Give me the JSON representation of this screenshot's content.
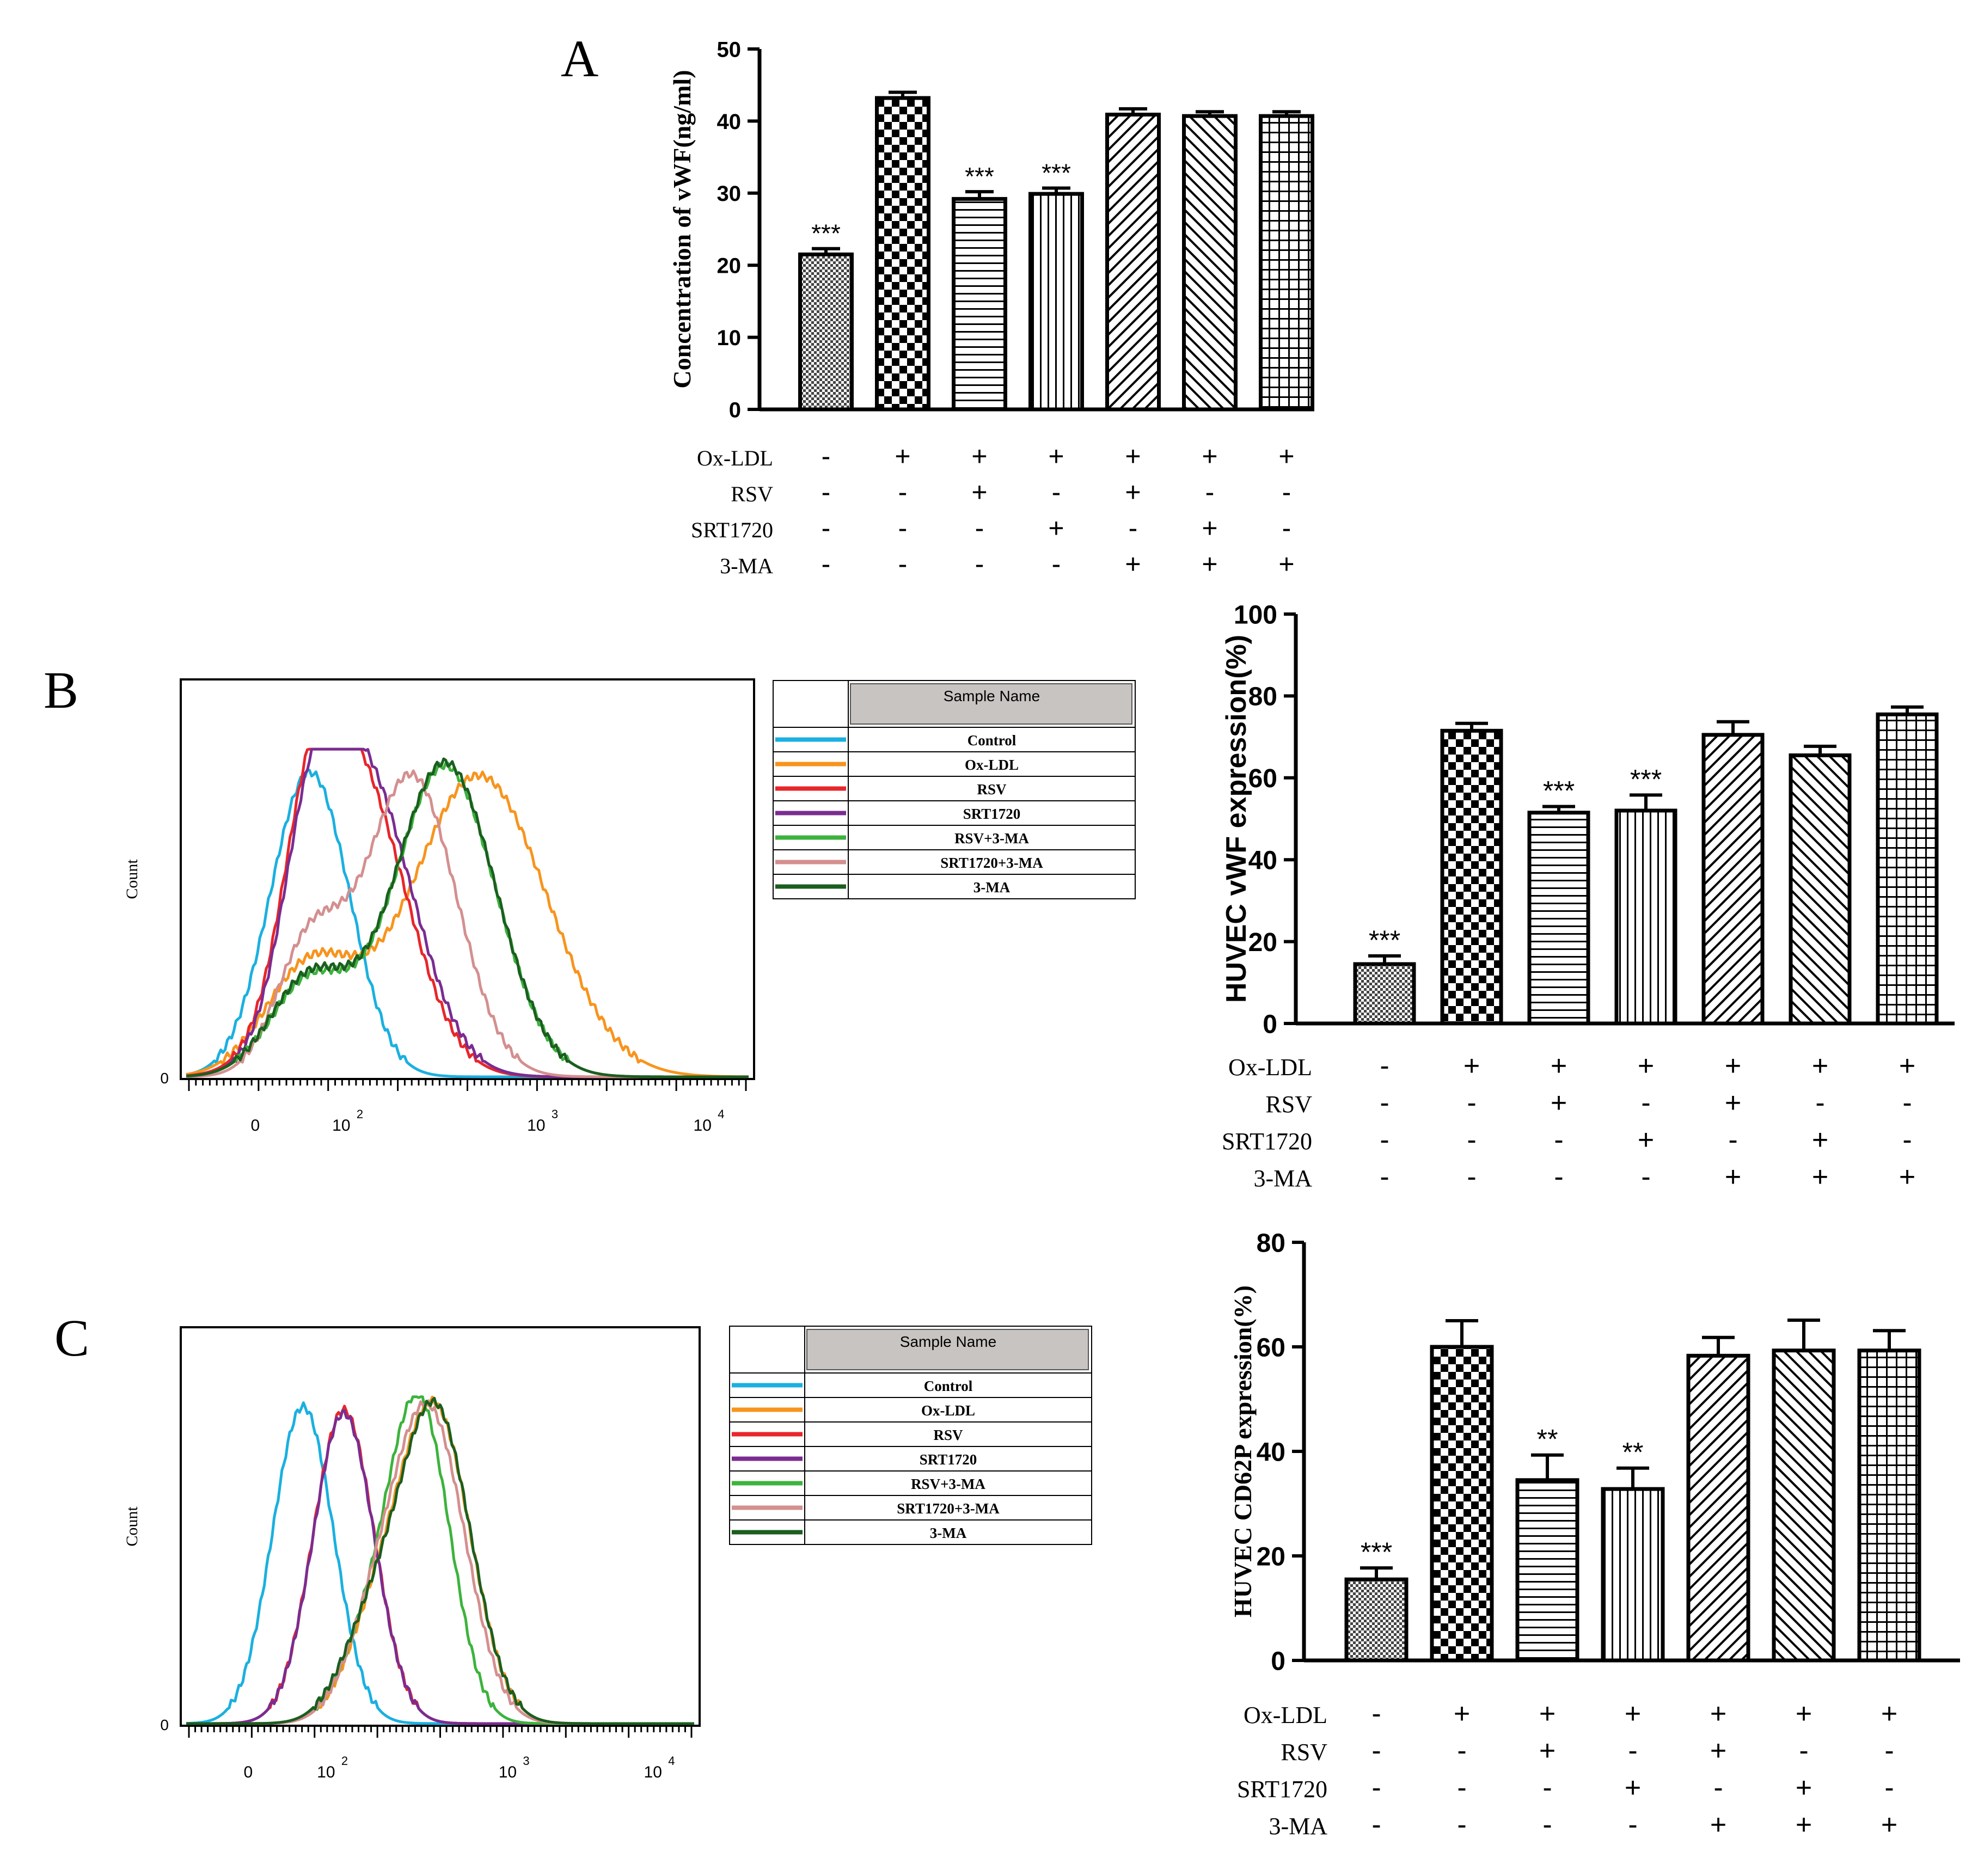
{
  "panels": {
    "A": "A",
    "B": "B",
    "C": "C"
  },
  "chart_data": [
    {
      "id": "A",
      "type": "bar",
      "ylabel": "Concentration of vWF(ng/ml)",
      "ylim": [
        0,
        50
      ],
      "yticks": [
        0,
        10,
        20,
        30,
        40,
        50
      ],
      "values": [
        21.5,
        43.2,
        29.2,
        29.9,
        40.9,
        40.7,
        40.7
      ],
      "errors": [
        0.8,
        0.8,
        1.0,
        0.8,
        0.8,
        0.6,
        0.6
      ],
      "significance": [
        "***",
        "",
        "***",
        "***",
        "",
        "",
        ""
      ],
      "treatments": [
        {
          "name": "Ox-LDL",
          "signs": [
            "-",
            "+",
            "+",
            "+",
            "+",
            "+",
            "+"
          ]
        },
        {
          "name": "RSV",
          "signs": [
            "-",
            "-",
            "+",
            "-",
            "+",
            "-",
            "-"
          ]
        },
        {
          "name": "SRT1720",
          "signs": [
            "-",
            "-",
            "-",
            "+",
            "-",
            "+",
            "-"
          ]
        },
        {
          "name": "3-MA",
          "signs": [
            "-",
            "-",
            "-",
            "-",
            "+",
            "+",
            "+"
          ]
        }
      ]
    },
    {
      "id": "B-bar",
      "type": "bar",
      "ylabel": "HUVEC vWF expression(%)",
      "ylim": [
        0,
        100
      ],
      "yticks": [
        0,
        20,
        40,
        60,
        80,
        100
      ],
      "values": [
        14.5,
        71.5,
        51.5,
        52.0,
        70.5,
        65.5,
        75.5
      ],
      "errors": [
        2.0,
        1.8,
        1.5,
        3.8,
        3.2,
        2.2,
        1.8
      ],
      "significance": [
        "***",
        "",
        "***",
        "***",
        "",
        "",
        ""
      ],
      "treatments": [
        {
          "name": "Ox-LDL",
          "signs": [
            "-",
            "+",
            "+",
            "+",
            "+",
            "+",
            "+"
          ]
        },
        {
          "name": "RSV",
          "signs": [
            "-",
            "-",
            "+",
            "-",
            "+",
            "-",
            "-"
          ]
        },
        {
          "name": "SRT1720",
          "signs": [
            "-",
            "-",
            "-",
            "+",
            "-",
            "+",
            "-"
          ]
        },
        {
          "name": "3-MA",
          "signs": [
            "-",
            "-",
            "-",
            "-",
            "+",
            "+",
            "+"
          ]
        }
      ]
    },
    {
      "id": "C-bar",
      "type": "bar",
      "ylabel": "HUVEC CD62P expression(%)",
      "ylim": [
        0,
        80
      ],
      "yticks": [
        0,
        20,
        40,
        60,
        80
      ],
      "values": [
        15.5,
        60.0,
        34.5,
        32.8,
        58.3,
        59.3,
        59.3
      ],
      "errors": [
        2.2,
        5.0,
        4.8,
        4.0,
        3.5,
        5.8,
        3.8
      ],
      "significance": [
        "***",
        "",
        "**",
        "**",
        "",
        "",
        ""
      ],
      "treatments": [
        {
          "name": "Ox-LDL",
          "signs": [
            "-",
            "+",
            "+",
            "+",
            "+",
            "+",
            "+"
          ]
        },
        {
          "name": "RSV",
          "signs": [
            "-",
            "-",
            "+",
            "-",
            "+",
            "-",
            "-"
          ]
        },
        {
          "name": "SRT1720",
          "signs": [
            "-",
            "-",
            "-",
            "+",
            "-",
            "+",
            "-"
          ]
        },
        {
          "name": "3-MA",
          "signs": [
            "-",
            "-",
            "-",
            "-",
            "+",
            "+",
            "+"
          ]
        }
      ]
    },
    {
      "id": "B-hist",
      "type": "line",
      "ylabel": "Count",
      "y_tick_label": "0",
      "x_tick_labels": [
        "0",
        "10",
        "10",
        "10"
      ],
      "x_tick_exponents": [
        "",
        "2",
        "3",
        "4"
      ],
      "legend_header": "Sample Name",
      "series": [
        {
          "name": "Control",
          "color": "#1ab0e0",
          "peaks": [
            [
              0.22,
              0.93,
              0.07
            ]
          ]
        },
        {
          "name": "Ox-LDL",
          "color": "#f7941d",
          "peaks": [
            [
              0.22,
              0.33,
              0.08
            ],
            [
              0.52,
              0.92,
              0.12
            ]
          ]
        },
        {
          "name": "RSV",
          "color": "#e8262b",
          "peaks": [
            [
              0.22,
              0.4,
              0.05
            ],
            [
              0.3,
              0.93,
              0.09
            ]
          ]
        },
        {
          "name": "SRT1720",
          "color": "#7b2c91",
          "peaks": [
            [
              0.22,
              0.4,
              0.05
            ],
            [
              0.31,
              0.95,
              0.09
            ]
          ]
        },
        {
          "name": "RSV+3-MA",
          "color": "#3cb33c",
          "peaks": [
            [
              0.22,
              0.29,
              0.07
            ],
            [
              0.46,
              0.95,
              0.09
            ]
          ]
        },
        {
          "name": "SRT1720+3-MA",
          "color": "#d48f8f",
          "peaks": [
            [
              0.22,
              0.4,
              0.06
            ],
            [
              0.4,
              0.92,
              0.08
            ]
          ]
        },
        {
          "name": "3-MA",
          "color": "#1b5e20",
          "peaks": [
            [
              0.22,
              0.3,
              0.07
            ],
            [
              0.46,
              0.96,
              0.09
            ]
          ]
        }
      ]
    },
    {
      "id": "C-hist",
      "type": "line",
      "ylabel": "Count",
      "y_tick_label": "0",
      "x_tick_labels": [
        "0",
        "10",
        "10",
        "10"
      ],
      "x_tick_exponents": [
        "",
        "2",
        "3",
        "4"
      ],
      "legend_header": "Sample Name",
      "series": [
        {
          "name": "Control",
          "color": "#1ab0e0",
          "peaks": [
            [
              0.23,
              0.97,
              0.06
            ]
          ]
        },
        {
          "name": "Ox-LDL",
          "color": "#f7941d",
          "peaks": [
            [
              0.37,
              0.25,
              0.06
            ],
            [
              0.49,
              0.95,
              0.07
            ]
          ]
        },
        {
          "name": "RSV",
          "color": "#e8262b",
          "peaks": [
            [
              0.31,
              0.96,
              0.06
            ]
          ]
        },
        {
          "name": "SRT1720",
          "color": "#7b2c91",
          "peaks": [
            [
              0.31,
              0.95,
              0.06
            ]
          ]
        },
        {
          "name": "RSV+3-MA",
          "color": "#3cb33c",
          "peaks": [
            [
              0.36,
              0.22,
              0.06
            ],
            [
              0.46,
              0.95,
              0.06
            ]
          ]
        },
        {
          "name": "SRT1720+3-MA",
          "color": "#d48f8f",
          "peaks": [
            [
              0.37,
              0.24,
              0.06
            ],
            [
              0.48,
              0.93,
              0.07
            ]
          ]
        },
        {
          "name": "3-MA",
          "color": "#1b5e20",
          "peaks": [
            [
              0.36,
              0.25,
              0.06
            ],
            [
              0.49,
              0.96,
              0.07
            ]
          ]
        }
      ]
    }
  ]
}
